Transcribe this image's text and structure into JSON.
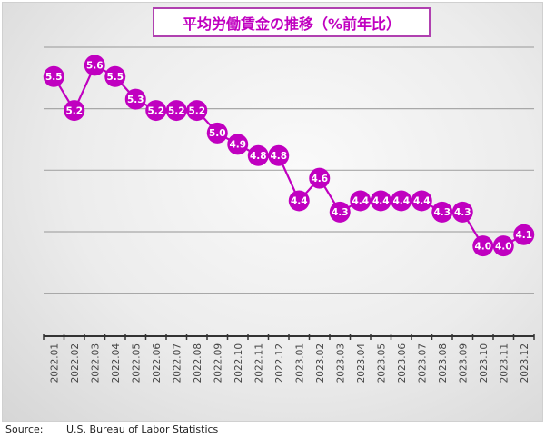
{
  "chart_data": {
    "type": "line",
    "title": "平均労働賃金の推移（%前年比）",
    "categories": [
      "2022.01",
      "2022.02",
      "2022.03",
      "2022.04",
      "2022.05",
      "2022.06",
      "2022.07",
      "2022.08",
      "2022.09",
      "2022.10",
      "2022.11",
      "2022.12",
      "2023.01",
      "2023.02",
      "2023.03",
      "2023.04",
      "2023.05",
      "2023.06",
      "2023.07",
      "2023.08",
      "2023.09",
      "2023.10",
      "2023.11",
      "2023.12"
    ],
    "values": [
      5.5,
      5.2,
      5.6,
      5.5,
      5.3,
      5.2,
      5.2,
      5.2,
      5.0,
      4.9,
      4.8,
      4.8,
      4.4,
      4.6,
      4.3,
      4.4,
      4.4,
      4.4,
      4.4,
      4.3,
      4.3,
      4.0,
      4.0,
      4.1
    ],
    "xlabel": "",
    "ylabel": "",
    "ylim": [
      3.2,
      5.76
    ],
    "y_tick_labels_shown": false,
    "grid": true,
    "data_labels": true,
    "colors": {
      "series": "#c000c0",
      "label_text": "#ffffff",
      "grid": "#a8a8a8",
      "axis": "#333333"
    }
  },
  "source": {
    "label": "Source:",
    "text": "U.S. Bureau of Labor Statistics"
  }
}
